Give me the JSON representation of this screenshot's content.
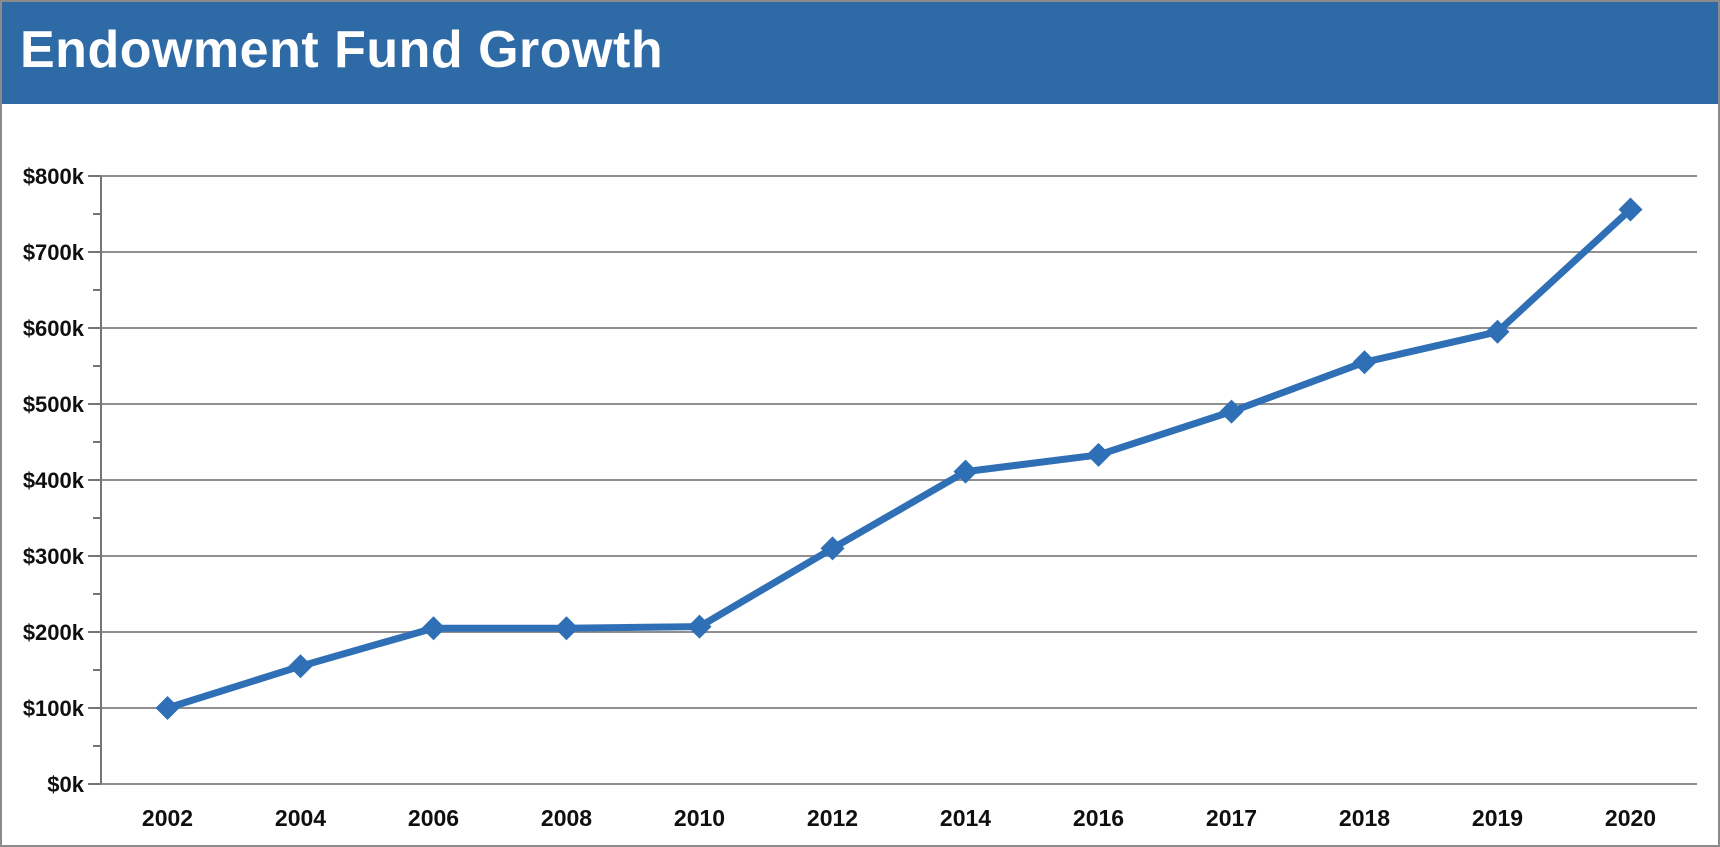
{
  "header": {
    "title": "Endowment Fund Growth",
    "background_color": "#2e6ba6",
    "text_color": "#ffffff"
  },
  "chart_data": {
    "type": "line",
    "title": "Endowment Fund Growth",
    "categories": [
      "2002",
      "2004",
      "2006",
      "2008",
      "2010",
      "2012",
      "2014",
      "2016",
      "2017",
      "2018",
      "2019",
      "2020"
    ],
    "series": [
      {
        "values_thousands_usd": [
          100,
          155,
          205,
          205,
          207,
          310,
          411,
          433,
          490,
          555,
          595,
          756
        ]
      }
    ],
    "xlabel": "",
    "ylabel": "",
    "ylim_thousands_usd": [
      0,
      800
    ],
    "y_axis": {
      "ticks": [
        {
          "value": 0,
          "label": "$0k"
        },
        {
          "value": 100,
          "label": "$100k"
        },
        {
          "value": 200,
          "label": "$200k"
        },
        {
          "value": 300,
          "label": "$300k"
        },
        {
          "value": 400,
          "label": "$400k"
        },
        {
          "value": 500,
          "label": "$500k"
        },
        {
          "value": 600,
          "label": "$600k"
        },
        {
          "value": 700,
          "label": "$700k"
        },
        {
          "value": 800,
          "label": "$800k"
        }
      ],
      "minor_tick_step": 50
    },
    "grid": true,
    "legend": false,
    "marker": "diamond",
    "colors": {
      "line": "#2e6fb5",
      "marker": "#2e6fb5",
      "gridline": "#8f8f8f",
      "axis": "#757575",
      "tick_label": "#0f0f0f"
    }
  }
}
